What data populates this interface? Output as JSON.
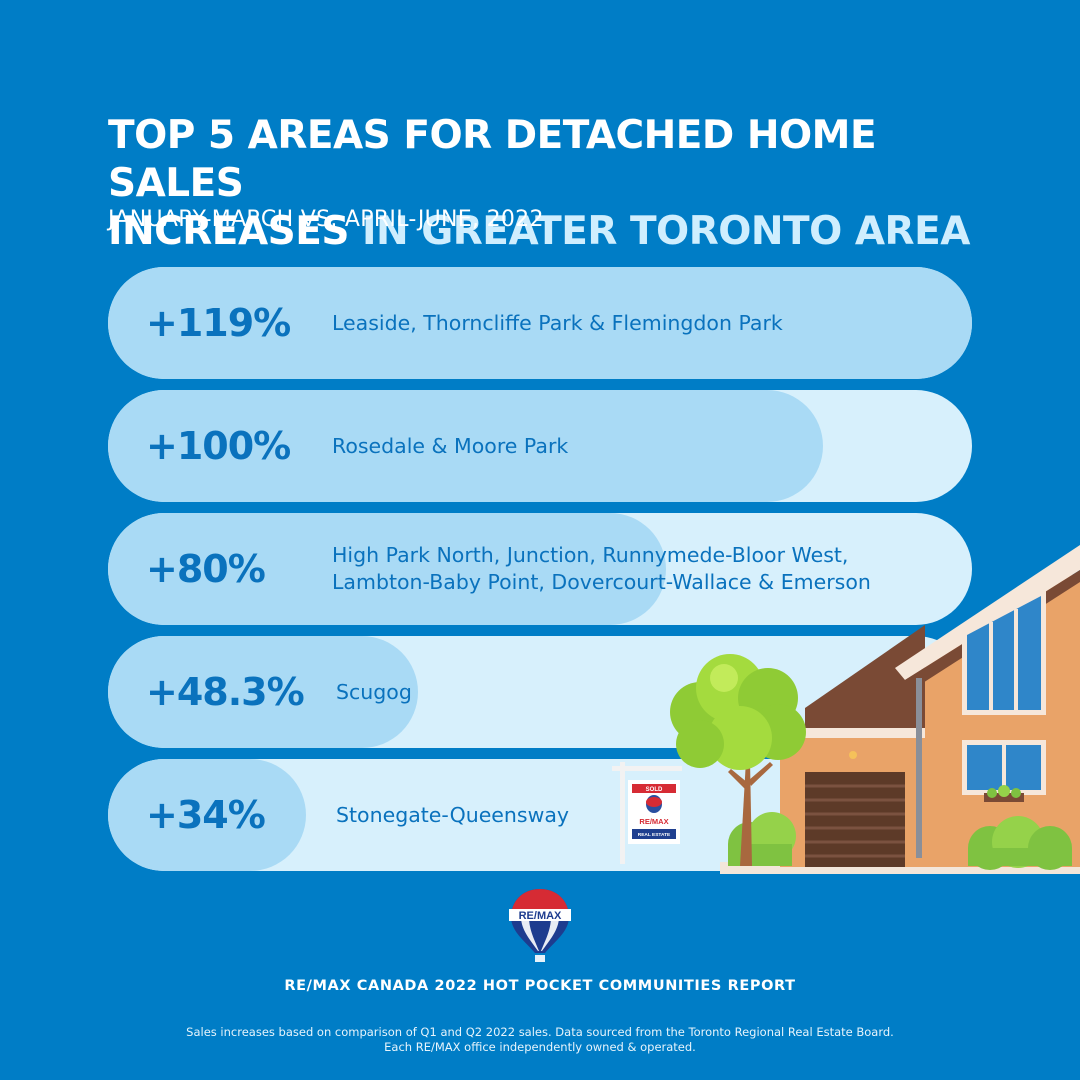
{
  "title": {
    "line1": "TOP 5 AREAS FOR DETACHED HOME SALES",
    "line2_part1": "INCREASES",
    "line2_part2": " IN GREATER TORONTO AREA"
  },
  "subtitle": "JANUARY-MARCH VS. APRIL-JUNE, 2022",
  "chart_data": {
    "type": "bar",
    "orientation": "horizontal",
    "categories": [
      "Leaside, Thorncliffe Park & Flemingdon Park",
      "Rosedale & Moore Park",
      "High Park North, Junction, Runnymede-Bloor West, Lambton-Baby Point, Dovercourt-Wallace & Emerson",
      "Scugog",
      "Stonegate-Queensway"
    ],
    "area_lines": [
      [
        "Leaside, Thorncliffe Park & Flemingdon Park"
      ],
      [
        "Rosedale & Moore Park"
      ],
      [
        "High Park North, Junction, Runnymede-Bloor West,",
        "Lambton-Baby Point, Dovercourt-Wallace & Emerson"
      ],
      [
        "Scugog"
      ],
      [
        "Stonegate-Queensway"
      ]
    ],
    "values": [
      119,
      100,
      80,
      48.3,
      34
    ],
    "value_labels": [
      "+119%",
      "+100%",
      "+80%",
      "+48.3%",
      "+34%"
    ],
    "xlim": [
      0,
      119
    ]
  },
  "colors": {
    "background": "#007dc6",
    "track": "#d7f0fc",
    "fill": "#a9daf5",
    "text": "#0a72bd"
  },
  "icons": {
    "illustration": "house-with-tree-and-sold-sign",
    "logo": "remax-balloon-logo"
  },
  "sign": {
    "top": "SOLD",
    "brand": "RE/MAX",
    "bottom": "REAL ESTATE"
  },
  "logo_text": "RE/MAX",
  "report": "RE/MAX CANADA 2022 HOT POCKET COMMUNITIES REPORT",
  "footnote": {
    "line1": "Sales increases based on comparison of Q1 and Q2 2022 sales. Data sourced from the Toronto Regional Real Estate Board.",
    "line2": "Each RE/MAX office independently owned & operated."
  }
}
